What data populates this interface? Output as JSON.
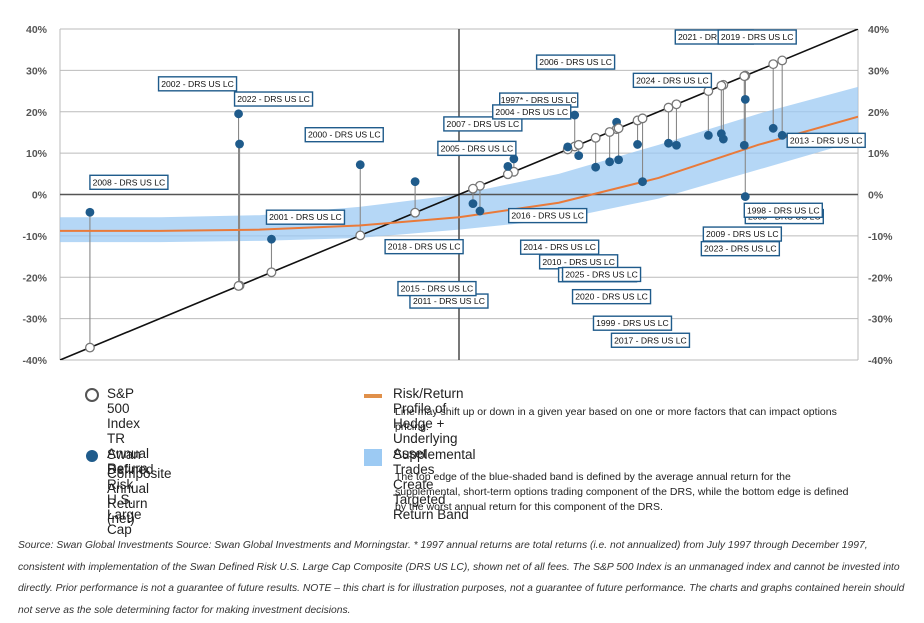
{
  "chart_data": {
    "type": "scatter",
    "x_range": [
      -40,
      40
    ],
    "y_range": [
      -40,
      40
    ],
    "y_ticks": [
      "40%",
      "30%",
      "20%",
      "10%",
      "0%",
      "-10%",
      "-20%",
      "-30%",
      "-40%"
    ],
    "colors": {
      "sp500_marker": "#777777",
      "drs_marker": "#1f5b8b",
      "profile_line": "#e97a3a",
      "band": "#9ccaf3",
      "diagonal": "#111111",
      "label_border": "#1f5b8b",
      "grid": "#bbbbbb"
    },
    "profile_line": [
      [
        -40,
        -8.8
      ],
      [
        -30,
        -8.8
      ],
      [
        -20,
        -8.5
      ],
      [
        -10,
        -7.5
      ],
      [
        0,
        -5.5
      ],
      [
        10,
        -2
      ],
      [
        20,
        4
      ],
      [
        30,
        12
      ],
      [
        40,
        18.8
      ],
      [
        48,
        25
      ]
    ],
    "band_upper": [
      [
        -40,
        -5.5
      ],
      [
        -30,
        -5.5
      ],
      [
        -20,
        -5
      ],
      [
        -10,
        -3
      ],
      [
        0,
        0
      ],
      [
        10,
        5
      ],
      [
        20,
        12
      ],
      [
        30,
        19.5
      ],
      [
        40,
        26
      ],
      [
        48,
        31
      ]
    ],
    "band_lower": [
      [
        -40,
        -11.5
      ],
      [
        -30,
        -11.5
      ],
      [
        -20,
        -11.2
      ],
      [
        -10,
        -10.5
      ],
      [
        0,
        -8.5
      ],
      [
        10,
        -6
      ],
      [
        20,
        -1
      ],
      [
        30,
        6
      ],
      [
        40,
        13
      ],
      [
        48,
        19
      ]
    ],
    "points": [
      {
        "year": "2008",
        "label": "2008 - DRS US LC",
        "sp500": -37,
        "drs": -4.3
      },
      {
        "year": "2022",
        "label": "2022 - DRS US LC",
        "sp500": -22,
        "drs": 12.2
      },
      {
        "year": "2002",
        "label": "2002 - DRS US LC",
        "sp500": -22.1,
        "drs": 19.5
      },
      {
        "year": "2001",
        "label": "2001 - DRS US LC",
        "sp500": -18.8,
        "drs": -10.8
      },
      {
        "year": "2000",
        "label": "2000 - DRS US LC",
        "sp500": -9.9,
        "drs": 7.2
      },
      {
        "year": "2018",
        "label": "2018 - DRS US LC",
        "sp500": -4.4,
        "drs": 3.1
      },
      {
        "year": "2011",
        "label": "2011 - DRS US LC",
        "sp500": 2.1,
        "drs": -4.0
      },
      {
        "year": "2015",
        "label": "2015 - DRS US LC",
        "sp500": 1.4,
        "drs": -2.2
      },
      {
        "year": "2007",
        "label": "2007 - DRS US LC",
        "sp500": 5.5,
        "drs": 8.6
      },
      {
        "year": "2005",
        "label": "2005 - DRS US LC",
        "sp500": 4.9,
        "drs": 6.8
      },
      {
        "year": "1997*",
        "label": "1997* - DRS US LC",
        "sp500": 11.6,
        "drs": 19.2
      },
      {
        "year": "2004",
        "label": "2004 - DRS US LC",
        "sp500": 10.9,
        "drs": 11.5
      },
      {
        "year": "2006",
        "label": "2006 - DRS US LC",
        "sp500": 15.8,
        "drs": 17.5
      },
      {
        "year": "2016",
        "label": "2016 - DRS US LC",
        "sp500": 12,
        "drs": 9.4
      },
      {
        "year": "2014",
        "label": "2014 - DRS US LC",
        "sp500": 13.7,
        "drs": 6.6
      },
      {
        "year": "2010",
        "label": "2010 - DRS US LC",
        "sp500": 15.1,
        "drs": 7.9
      },
      {
        "year": "2012",
        "label": "2012 - DRS US LC",
        "sp500": 16,
        "drs": 8.4
      },
      {
        "year": "2025",
        "label": "2025 - DRS US LC",
        "sp500": 17.9,
        "drs": 12.1
      },
      {
        "year": "2020",
        "label": "2020 - DRS US LC",
        "sp500": 18.4,
        "drs": 3.1
      },
      {
        "year": "1999",
        "label": "1999 - DRS US LC",
        "sp500": 21,
        "drs": 12.4
      },
      {
        "year": "2017",
        "label": "2017 - DRS US LC",
        "sp500": 21.8,
        "drs": 11.9
      },
      {
        "year": "2024",
        "label": "2024 - DRS US LC",
        "sp500": 25,
        "drs": 14.3
      },
      {
        "year": "2021",
        "label": "2021 - DRS US LC",
        "sp500": 28.7,
        "drs": 23
      },
      {
        "year": "2009",
        "label": "2009 - DRS US LC",
        "sp500": 26.5,
        "drs": 13.4
      },
      {
        "year": "2019",
        "label": "2019 - DRS US LC",
        "sp500": 31.5,
        "drs": 16
      },
      {
        "year": "2003",
        "label": "2003 - DRS US LC",
        "sp500": 28.7,
        "drs": -0.5
      },
      {
        "year": "1998",
        "label": "1998 - DRS US LC",
        "sp500": 28.6,
        "drs": 11.9
      },
      {
        "year": "2023",
        "label": "2023 - DRS US LC",
        "sp500": 26.3,
        "drs": 14.7
      },
      {
        "year": "2013",
        "label": "2013 - DRS US LC",
        "sp500": 32.4,
        "drs": 14.3
      }
    ]
  },
  "legend": {
    "sp500": "S&P 500 Index TR Annual Return",
    "drs_line1": "Swan Defined Risk U.S. Large Cap",
    "drs_line2": "Composite Annual Return (net)",
    "profile_title": "Risk/Return Profile of Hedge + Underlying Asset",
    "profile_desc": "Line may shift up or down in a given year based on one or more factors  that can impact options pricing.",
    "band_title": "Supplemental Trades Create Targeted Return Band",
    "band_desc": "The top edge of the blue-shaded band is defined by the average annual return for the supplemental, short-term options trading component of the DRS, while the bottom edge is defined by the worst annual return for this component of the DRS."
  },
  "footnote": "Source: Swan Global Investments Source: Swan Global Investments and Morningstar.  * 1997 annual returns are total returns (i.e. not annualized) from July 1997 through December 1997,  consistent with implementation of the Swan Defined Risk U.S. Large Cap Composite (DRS US LC), shown net of all fees. The S&P 500 Index is an unmanaged index and cannot be invested into directly. Prior performance is not a guarantee of future results. NOTE – this chart is for illustration purposes, not a guarantee of future performance. The charts and graphs contained herein should not serve as the sole determining factor for making investment decisions."
}
